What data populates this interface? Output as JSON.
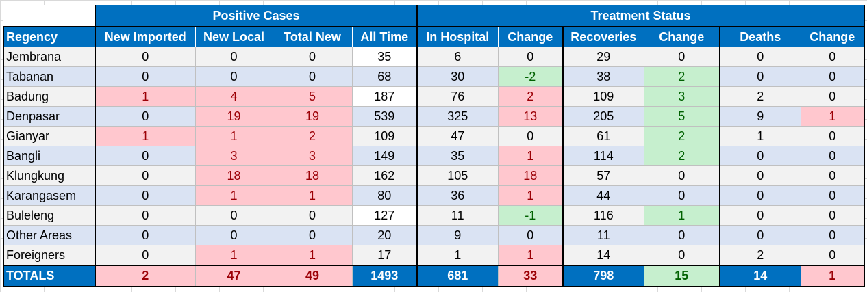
{
  "groups": {
    "positive": "Positive Cases",
    "treatment": "Treatment Status"
  },
  "headers": [
    "Regency",
    "New Imported",
    "New Local",
    "Total New",
    "All Time",
    "In Hospital",
    "Change",
    "Recoveries",
    "Change",
    "Deaths",
    "Change"
  ],
  "rows": [
    {
      "name": "Jembrana",
      "v": [
        "0",
        "0",
        "0",
        "35",
        "6",
        "0",
        "29",
        "0",
        "0",
        "0"
      ]
    },
    {
      "name": "Tabanan",
      "v": [
        "0",
        "0",
        "0",
        "68",
        "30",
        "-2",
        "38",
        "2",
        "0",
        "0"
      ]
    },
    {
      "name": "Badung",
      "v": [
        "1",
        "4",
        "5",
        "187",
        "76",
        "2",
        "109",
        "3",
        "2",
        "0"
      ]
    },
    {
      "name": "Denpasar",
      "v": [
        "0",
        "19",
        "19",
        "539",
        "325",
        "13",
        "205",
        "5",
        "9",
        "1"
      ]
    },
    {
      "name": "Gianyar",
      "v": [
        "1",
        "1",
        "2",
        "109",
        "47",
        "0",
        "61",
        "2",
        "1",
        "0"
      ]
    },
    {
      "name": "Bangli",
      "v": [
        "0",
        "3",
        "3",
        "149",
        "35",
        "1",
        "114",
        "2",
        "0",
        "0"
      ]
    },
    {
      "name": "Klungkung",
      "v": [
        "0",
        "18",
        "18",
        "162",
        "105",
        "18",
        "57",
        "0",
        "0",
        "0"
      ]
    },
    {
      "name": "Karangasem",
      "v": [
        "0",
        "1",
        "1",
        "80",
        "36",
        "1",
        "44",
        "0",
        "0",
        "0"
      ]
    },
    {
      "name": "Buleleng",
      "v": [
        "0",
        "0",
        "0",
        "127",
        "11",
        "-1",
        "116",
        "1",
        "0",
        "0"
      ]
    },
    {
      "name": "Other Areas",
      "v": [
        "0",
        "0",
        "0",
        "20",
        "9",
        "0",
        "11",
        "0",
        "0",
        "0"
      ]
    },
    {
      "name": "Foreigners",
      "v": [
        "0",
        "1",
        "1",
        "17",
        "1",
        "1",
        "14",
        "0",
        "2",
        "0"
      ]
    }
  ],
  "totals": {
    "name": "TOTALS",
    "v": [
      "2",
      "47",
      "49",
      "1493",
      "681",
      "33",
      "798",
      "15",
      "14",
      "1"
    ]
  },
  "highlights": {
    "red_hex": "#ffc7ce",
    "green_hex": "#c6efce",
    "blue_hex": "#0070c0",
    "red_cells": [
      [
        2,
        0
      ],
      [
        2,
        1
      ],
      [
        2,
        2
      ],
      [
        2,
        5
      ],
      [
        3,
        1
      ],
      [
        3,
        2
      ],
      [
        3,
        5
      ],
      [
        3,
        9
      ],
      [
        4,
        0
      ],
      [
        4,
        1
      ],
      [
        4,
        2
      ],
      [
        5,
        1
      ],
      [
        5,
        2
      ],
      [
        5,
        5
      ],
      [
        6,
        1
      ],
      [
        6,
        2
      ],
      [
        6,
        5
      ],
      [
        7,
        1
      ],
      [
        7,
        2
      ],
      [
        7,
        5
      ],
      [
        10,
        1
      ],
      [
        10,
        2
      ],
      [
        10,
        5
      ]
    ],
    "green_cells": [
      [
        1,
        5
      ],
      [
        1,
        7
      ],
      [
        2,
        7
      ],
      [
        3,
        7
      ],
      [
        4,
        7
      ],
      [
        5,
        7
      ],
      [
        8,
        5
      ],
      [
        8,
        7
      ]
    ],
    "white_cells": [
      [
        0,
        3
      ],
      [
        2,
        3
      ],
      [
        8,
        3
      ]
    ],
    "totals_red": [
      0,
      1,
      2,
      5,
      9
    ],
    "totals_green": [
      7
    ]
  }
}
